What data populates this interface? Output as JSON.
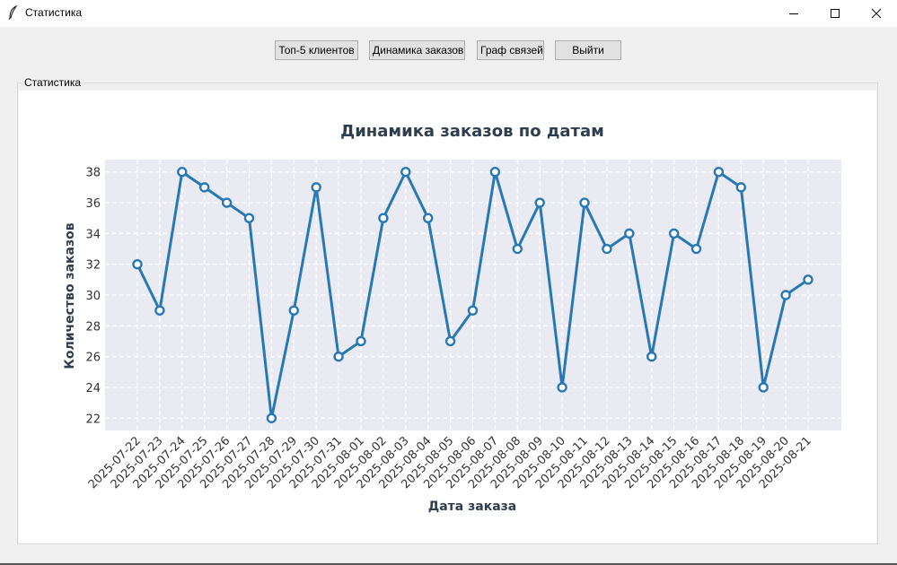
{
  "window": {
    "title": "Статистика",
    "icons": {
      "app": "feather-icon",
      "minimize": "minimize-icon",
      "maximize": "maximize-icon",
      "close": "close-icon"
    }
  },
  "toolbar": {
    "top5_label": "Топ-5 клиентов",
    "dynamics_label": "Динамика заказов",
    "graph_label": "Граф связей",
    "exit_label": "Выйти"
  },
  "frame": {
    "label": "Статистика"
  },
  "chart_data": {
    "type": "line",
    "title": "Динамика заказов по датам",
    "xlabel": "Дата заказа",
    "ylabel": "Количество заказов",
    "categories": [
      "2025-07-22",
      "2025-07-23",
      "2025-07-24",
      "2025-07-25",
      "2025-07-26",
      "2025-07-27",
      "2025-07-28",
      "2025-07-29",
      "2025-07-30",
      "2025-07-31",
      "2025-08-01",
      "2025-08-02",
      "2025-08-03",
      "2025-08-04",
      "2025-08-05",
      "2025-08-06",
      "2025-08-07",
      "2025-08-08",
      "2025-08-09",
      "2025-08-10",
      "2025-08-11",
      "2025-08-12",
      "2025-08-13",
      "2025-08-14",
      "2025-08-15",
      "2025-08-16",
      "2025-08-17",
      "2025-08-18",
      "2025-08-19",
      "2025-08-20",
      "2025-08-21"
    ],
    "values": [
      32,
      29,
      38,
      37,
      36,
      35,
      22,
      29,
      37,
      26,
      27,
      35,
      38,
      35,
      27,
      29,
      38,
      33,
      36,
      24,
      36,
      33,
      34,
      26,
      34,
      33,
      38,
      37,
      24,
      30,
      31
    ],
    "yticks": [
      22,
      24,
      26,
      28,
      30,
      32,
      34,
      36,
      38
    ],
    "ylim": [
      21.2,
      38.8
    ],
    "grid": true,
    "line_color": "#2878b5",
    "plot_background": "#eaeaf2"
  }
}
